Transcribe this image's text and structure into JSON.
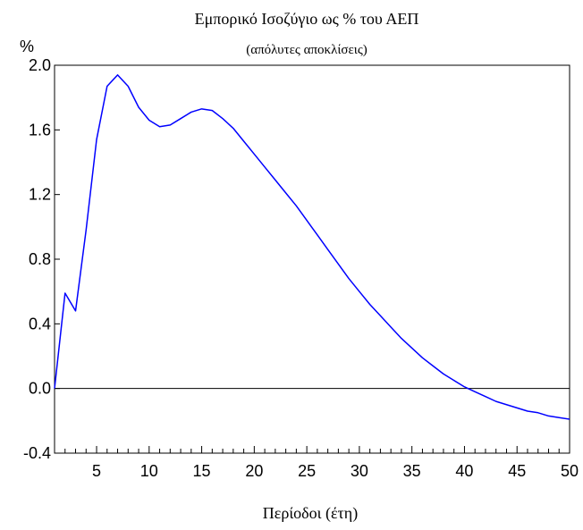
{
  "chart_data": {
    "type": "line",
    "title": "Εμπορικό Ισοζύγιο ως  % του ΑΕΠ",
    "subtitle": "(απόλυτες αποκλίσεις)",
    "xlabel": "Περίοδοι (έτη)",
    "ylabel": "%",
    "xlim": [
      1,
      50
    ],
    "ylim": [
      -0.4,
      2.0
    ],
    "x_ticks": [
      5,
      10,
      15,
      20,
      25,
      30,
      35,
      40,
      45,
      50
    ],
    "y_ticks": [
      -0.4,
      0.0,
      0.4,
      0.8,
      1.2,
      1.6,
      2.0
    ],
    "y_tick_labels": [
      "-0.4",
      "0.0",
      "0.4",
      "0.8",
      "1.2",
      "1.6",
      "2.0"
    ],
    "grid": false,
    "zero_line": true,
    "series": [
      {
        "color": "#0000ff",
        "x": [
          1,
          2,
          3,
          4,
          5,
          6,
          7,
          8,
          9,
          10,
          11,
          12,
          13,
          14,
          15,
          16,
          17,
          18,
          19,
          20,
          21,
          22,
          23,
          24,
          25,
          26,
          27,
          28,
          29,
          30,
          31,
          32,
          33,
          34,
          35,
          36,
          37,
          38,
          39,
          40,
          41,
          42,
          43,
          44,
          45,
          46,
          47,
          48,
          49,
          50
        ],
        "y": [
          0.0,
          0.59,
          0.48,
          0.98,
          1.54,
          1.87,
          1.94,
          1.87,
          1.74,
          1.66,
          1.62,
          1.63,
          1.67,
          1.71,
          1.73,
          1.72,
          1.67,
          1.61,
          1.53,
          1.45,
          1.37,
          1.29,
          1.21,
          1.13,
          1.04,
          0.95,
          0.86,
          0.77,
          0.68,
          0.6,
          0.52,
          0.45,
          0.38,
          0.31,
          0.25,
          0.19,
          0.14,
          0.09,
          0.05,
          0.01,
          -0.02,
          -0.05,
          -0.08,
          -0.1,
          -0.12,
          -0.14,
          -0.15,
          -0.17,
          -0.18,
          -0.19
        ]
      }
    ]
  }
}
